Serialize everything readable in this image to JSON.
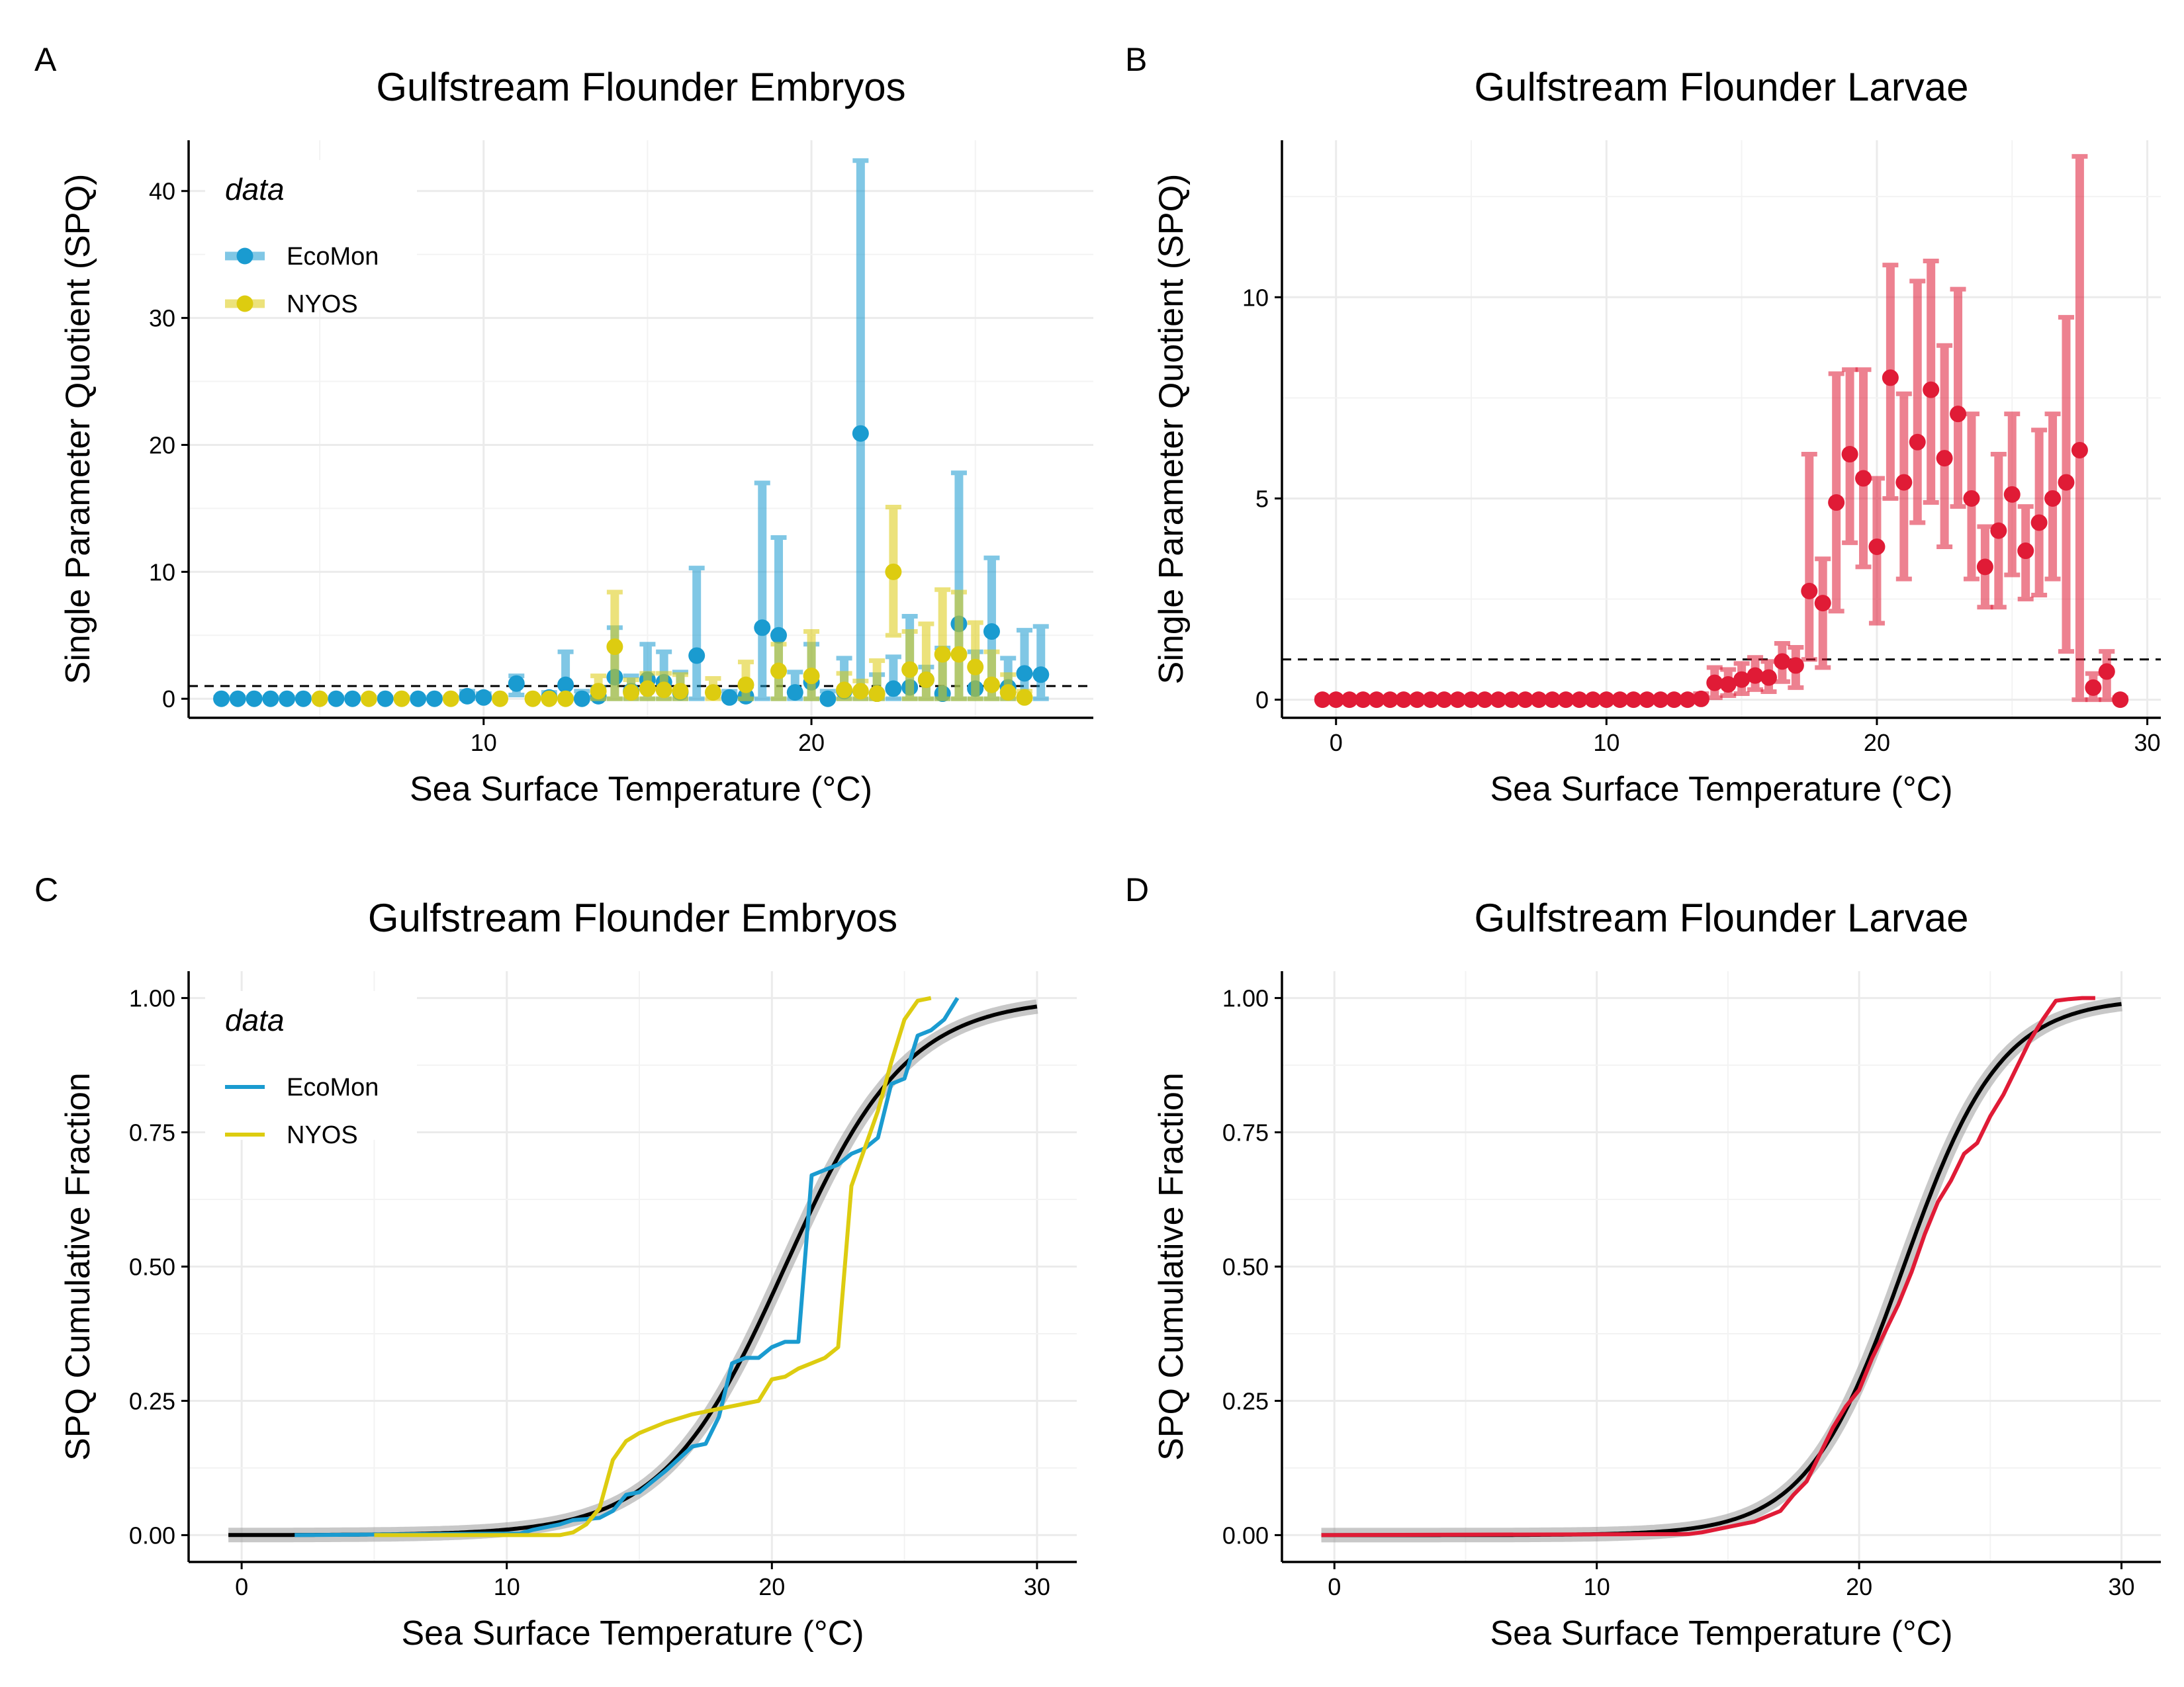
{
  "colors": {
    "EcoMon": "#1a9bd0",
    "NYOS": "#ddcc10",
    "larvae": "#e01b36",
    "fit": "#000000",
    "fit_ribbon": "#9a9a9a"
  },
  "chart_data": [
    {
      "panel": "A",
      "type": "scatter",
      "title": "Gulfstream Flounder Embryos",
      "xlabel": "Sea Surface Temperature (°C)",
      "ylabel": "Single Parameter Quotient (SPQ)",
      "xlim": [
        1.0,
        28.6
      ],
      "ylim": [
        -1.5,
        44
      ],
      "xticks": [
        10,
        20
      ],
      "yticks": [
        0,
        10,
        20,
        30,
        40
      ],
      "grid": true,
      "error_bars": true,
      "reference_line": 1,
      "legend": {
        "title": "data",
        "position": "top-left"
      },
      "series": [
        {
          "name": "EcoMon",
          "color_key": "EcoMon",
          "x": [
            2.0,
            2.5,
            3.0,
            3.5,
            4.0,
            4.5,
            5.5,
            6.0,
            7.0,
            8.0,
            8.5,
            9.5,
            10.0,
            11.0,
            12.0,
            12.5,
            13.0,
            13.5,
            14.0,
            14.5,
            15.0,
            15.5,
            16.0,
            16.5,
            17.5,
            18.0,
            18.5,
            19.0,
            19.5,
            20.0,
            20.5,
            21.0,
            21.5,
            22.0,
            22.5,
            23.0,
            23.5,
            24.0,
            24.5,
            25.0,
            25.5,
            26.0,
            26.5,
            27.0
          ],
          "y": [
            0,
            0,
            0,
            0,
            0,
            0,
            0,
            0,
            0,
            0,
            0,
            0.2,
            0.1,
            1.2,
            0.1,
            1.1,
            0,
            0.2,
            1.7,
            0.6,
            1.5,
            1.3,
            0.5,
            3.4,
            0.1,
            0.2,
            5.6,
            5.0,
            0.5,
            1.3,
            0,
            0.6,
            20.9,
            0.4,
            0.8,
            0.9,
            1.5,
            0.4,
            5.9,
            0.8,
            5.3,
            0.9,
            2.0,
            1.9
          ],
          "y_low": [
            0,
            0,
            0,
            0,
            0,
            0,
            0,
            0,
            0,
            0,
            0,
            0,
            0,
            0.3,
            0,
            0,
            0,
            0,
            0,
            0,
            0,
            0,
            0,
            0,
            0,
            0,
            0,
            0,
            0,
            0,
            0,
            0,
            0,
            0,
            0,
            0,
            0,
            0,
            0,
            0,
            0,
            0,
            0,
            0
          ],
          "y_high": [
            0.1,
            0.1,
            0.1,
            0.1,
            0.1,
            0.1,
            0.1,
            0.1,
            0.1,
            0.1,
            0.1,
            0.6,
            0.4,
            1.8,
            0.5,
            3.7,
            0.6,
            0.9,
            5.6,
            1.8,
            4.3,
            3.7,
            2.1,
            10.3,
            0.6,
            1.0,
            17.0,
            12.7,
            2.1,
            4.3,
            0.6,
            3.2,
            42.4,
            1.9,
            3.3,
            6.5,
            2.5,
            4.0,
            17.8,
            3.7,
            11.1,
            3.2,
            5.4,
            5.7
          ]
        },
        {
          "name": "NYOS",
          "color_key": "NYOS",
          "x": [
            5.0,
            6.5,
            7.5,
            9.0,
            10.5,
            11.5,
            12.0,
            12.5,
            13.5,
            14.0,
            14.5,
            15.0,
            15.5,
            16.0,
            17.0,
            18.0,
            19.0,
            20.0,
            21.0,
            21.5,
            22.0,
            22.5,
            23.0,
            23.5,
            24.0,
            24.5,
            25.0,
            25.5,
            26.0,
            26.5
          ],
          "y": [
            0,
            0,
            0,
            0,
            0,
            0,
            0,
            0,
            0.6,
            4.1,
            0.5,
            0.8,
            0.7,
            0.6,
            0.5,
            1.1,
            2.2,
            1.8,
            0.7,
            0.6,
            0.4,
            10.0,
            2.3,
            1.5,
            3.5,
            3.5,
            2.5,
            1.1,
            0.5,
            0.1
          ],
          "y_low": [
            0,
            0,
            0,
            0,
            0,
            0,
            0,
            0,
            0,
            0,
            0,
            0,
            0,
            0,
            0,
            0,
            0,
            0,
            0,
            0,
            0,
            5.0,
            0,
            0,
            0,
            0,
            0,
            0,
            0,
            0
          ],
          "y_high": [
            0.1,
            0.1,
            0.1,
            0.1,
            0.1,
            0.1,
            0.1,
            0.1,
            1.8,
            8.4,
            1.5,
            2.0,
            2.0,
            1.9,
            1.6,
            2.9,
            4.3,
            5.3,
            2.0,
            1.4,
            3.0,
            15.1,
            5.3,
            5.9,
            8.6,
            8.4,
            6.0,
            3.7,
            1.9,
            0.6
          ]
        }
      ]
    },
    {
      "panel": "B",
      "type": "scatter",
      "title": "Gulfstream Flounder Larvae",
      "xlabel": "Sea Surface Temperature (°C)",
      "ylabel": "Single Parameter Quotient (SPQ)",
      "xlim": [
        -2.0,
        30.5
      ],
      "ylim": [
        -0.45,
        13.9
      ],
      "xticks": [
        0,
        10,
        20,
        30
      ],
      "yticks": [
        0,
        5,
        10
      ],
      "grid": true,
      "error_bars": true,
      "reference_line": 1,
      "series": [
        {
          "color_key": "larvae",
          "x": [
            -0.5,
            0.0,
            0.5,
            1.0,
            1.5,
            2.0,
            2.5,
            3.0,
            3.5,
            4.0,
            4.5,
            5.0,
            5.5,
            6.0,
            6.5,
            7.0,
            7.5,
            8.0,
            8.5,
            9.0,
            9.5,
            10.0,
            10.5,
            11.0,
            11.5,
            12.0,
            12.5,
            13.0,
            13.5,
            14.0,
            14.5,
            15.0,
            15.5,
            16.0,
            16.5,
            17.0,
            17.5,
            18.0,
            18.5,
            19.0,
            19.5,
            20.0,
            20.5,
            21.0,
            21.5,
            22.0,
            22.5,
            23.0,
            23.5,
            24.0,
            24.5,
            25.0,
            25.5,
            26.0,
            26.5,
            27.0,
            27.5,
            28.0,
            28.5,
            29.0
          ],
          "y": [
            0,
            0,
            0,
            0,
            0,
            0,
            0,
            0,
            0,
            0,
            0,
            0,
            0,
            0,
            0,
            0,
            0,
            0,
            0,
            0,
            0,
            0,
            0,
            0,
            0,
            0,
            0,
            0,
            0.02,
            0.42,
            0.38,
            0.5,
            0.6,
            0.55,
            0.95,
            0.85,
            2.7,
            2.4,
            4.9,
            6.1,
            5.5,
            3.8,
            8.0,
            5.4,
            6.4,
            7.7,
            6.0,
            7.1,
            5.0,
            3.3,
            4.2,
            5.1,
            3.7,
            4.4,
            5.0,
            5.4,
            6.2,
            0.3,
            0.7,
            0.0
          ],
          "y_low": [
            0,
            0,
            0,
            0,
            0,
            0,
            0,
            0,
            0,
            0,
            0,
            0,
            0,
            0,
            0,
            0,
            0,
            0,
            0,
            0,
            0,
            0,
            0,
            0,
            0,
            0,
            0,
            0,
            0,
            0.05,
            0.1,
            0.15,
            0.25,
            0.2,
            0.45,
            0.3,
            1.0,
            0.8,
            2.2,
            3.9,
            3.3,
            1.9,
            5.0,
            3.0,
            4.4,
            4.9,
            3.8,
            4.8,
            3.0,
            2.3,
            2.3,
            3.1,
            2.5,
            2.6,
            3.0,
            1.2,
            0.0,
            0.0,
            0.0,
            0.0
          ],
          "y_high": [
            0.05,
            0.05,
            0.05,
            0.05,
            0.05,
            0.05,
            0.05,
            0.05,
            0.05,
            0.05,
            0.05,
            0.05,
            0.05,
            0.05,
            0.05,
            0.05,
            0.05,
            0.05,
            0.05,
            0.05,
            0.05,
            0.05,
            0.05,
            0.05,
            0.05,
            0.05,
            0.05,
            0.05,
            0.15,
            0.8,
            0.75,
            0.9,
            1.05,
            0.95,
            1.4,
            1.3,
            6.1,
            3.5,
            8.1,
            8.2,
            8.2,
            5.5,
            10.8,
            7.6,
            10.4,
            10.9,
            8.8,
            10.2,
            7.1,
            4.3,
            6.1,
            7.1,
            4.8,
            6.7,
            7.1,
            9.5,
            13.5,
            0.65,
            1.2,
            0.05
          ]
        }
      ]
    },
    {
      "panel": "C",
      "type": "line",
      "title": "Gulfstream Flounder Embryos",
      "xlabel": "Sea Surface Temperature (°C)",
      "ylabel": "SPQ Cumulative Fraction",
      "xlim": [
        -2.0,
        31.5
      ],
      "ylim": [
        -0.05,
        1.05
      ],
      "xticks": [
        0,
        10,
        20,
        30
      ],
      "yticks": [
        0.0,
        0.25,
        0.5,
        0.75,
        1.0
      ],
      "ytick_labels": [
        "0.00",
        "0.25",
        "0.50",
        "0.75",
        "1.00"
      ],
      "grid": true,
      "legend": {
        "title": "data",
        "position": "top-left"
      },
      "fit": {
        "type": "logistic",
        "midpoint": 20.5,
        "scale": 2.3,
        "range": [
          -0.5,
          30
        ]
      },
      "series": [
        {
          "name": "EcoMon",
          "color_key": "EcoMon",
          "x": [
            2.0,
            10.5,
            11.0,
            12.0,
            12.5,
            13.0,
            13.5,
            14.0,
            14.5,
            15.0,
            15.5,
            16.0,
            17.0,
            17.5,
            18.0,
            18.5,
            19.0,
            19.5,
            20.0,
            20.5,
            21.0,
            21.5,
            22.0,
            22.5,
            23.0,
            23.5,
            24.0,
            24.5,
            25.0,
            25.5,
            26.0,
            26.5,
            27.0
          ],
          "y": [
            0,
            0.003,
            0.01,
            0.02,
            0.028,
            0.03,
            0.032,
            0.045,
            0.075,
            0.08,
            0.1,
            0.12,
            0.165,
            0.17,
            0.22,
            0.32,
            0.33,
            0.33,
            0.35,
            0.36,
            0.36,
            0.67,
            0.68,
            0.69,
            0.71,
            0.72,
            0.74,
            0.84,
            0.85,
            0.93,
            0.94,
            0.96,
            1.0
          ]
        },
        {
          "name": "NYOS",
          "color_key": "NYOS",
          "x": [
            5.0,
            12.0,
            12.5,
            13.0,
            13.5,
            14.0,
            14.5,
            15.0,
            15.5,
            16.0,
            17.0,
            18.0,
            18.5,
            19.0,
            19.5,
            20.0,
            20.5,
            21.0,
            21.5,
            22.0,
            22.5,
            23.0,
            23.5,
            24.0,
            24.5,
            25.0,
            25.5,
            26.0
          ],
          "y": [
            0,
            0,
            0.005,
            0.02,
            0.05,
            0.14,
            0.175,
            0.19,
            0.2,
            0.21,
            0.225,
            0.235,
            0.24,
            0.245,
            0.25,
            0.29,
            0.295,
            0.31,
            0.32,
            0.33,
            0.35,
            0.65,
            0.72,
            0.79,
            0.88,
            0.96,
            0.995,
            1.0
          ]
        }
      ]
    },
    {
      "panel": "D",
      "type": "line",
      "title": "Gulfstream Flounder Larvae",
      "xlabel": "Sea Surface Temperature (°C)",
      "ylabel": "SPQ Cumulative Fraction",
      "xlim": [
        -2.0,
        31.5
      ],
      "ylim": [
        -0.05,
        1.05
      ],
      "xticks": [
        0,
        10,
        20,
        30
      ],
      "yticks": [
        0.0,
        0.25,
        0.5,
        0.75,
        1.0
      ],
      "ytick_labels": [
        "0.00",
        "0.25",
        "0.50",
        "0.75",
        "1.00"
      ],
      "grid": true,
      "fit": {
        "type": "logistic",
        "midpoint": 21.7,
        "scale": 1.85,
        "range": [
          -0.5,
          30
        ]
      },
      "series": [
        {
          "color_key": "larvae",
          "x": [
            -0.5,
            13.5,
            14.0,
            15.0,
            16.0,
            17.0,
            17.5,
            18.0,
            18.5,
            19.0,
            19.5,
            20.0,
            20.5,
            21.0,
            21.5,
            22.0,
            22.5,
            23.0,
            23.5,
            24.0,
            24.5,
            25.0,
            25.5,
            26.0,
            26.5,
            27.0,
            27.5,
            28.0,
            28.5,
            29.0
          ],
          "y": [
            0,
            0.002,
            0.005,
            0.015,
            0.025,
            0.045,
            0.075,
            0.1,
            0.15,
            0.2,
            0.24,
            0.27,
            0.33,
            0.38,
            0.43,
            0.49,
            0.56,
            0.62,
            0.66,
            0.71,
            0.73,
            0.78,
            0.82,
            0.87,
            0.92,
            0.96,
            0.995,
            0.998,
            1.0,
            1.0
          ]
        }
      ]
    }
  ]
}
